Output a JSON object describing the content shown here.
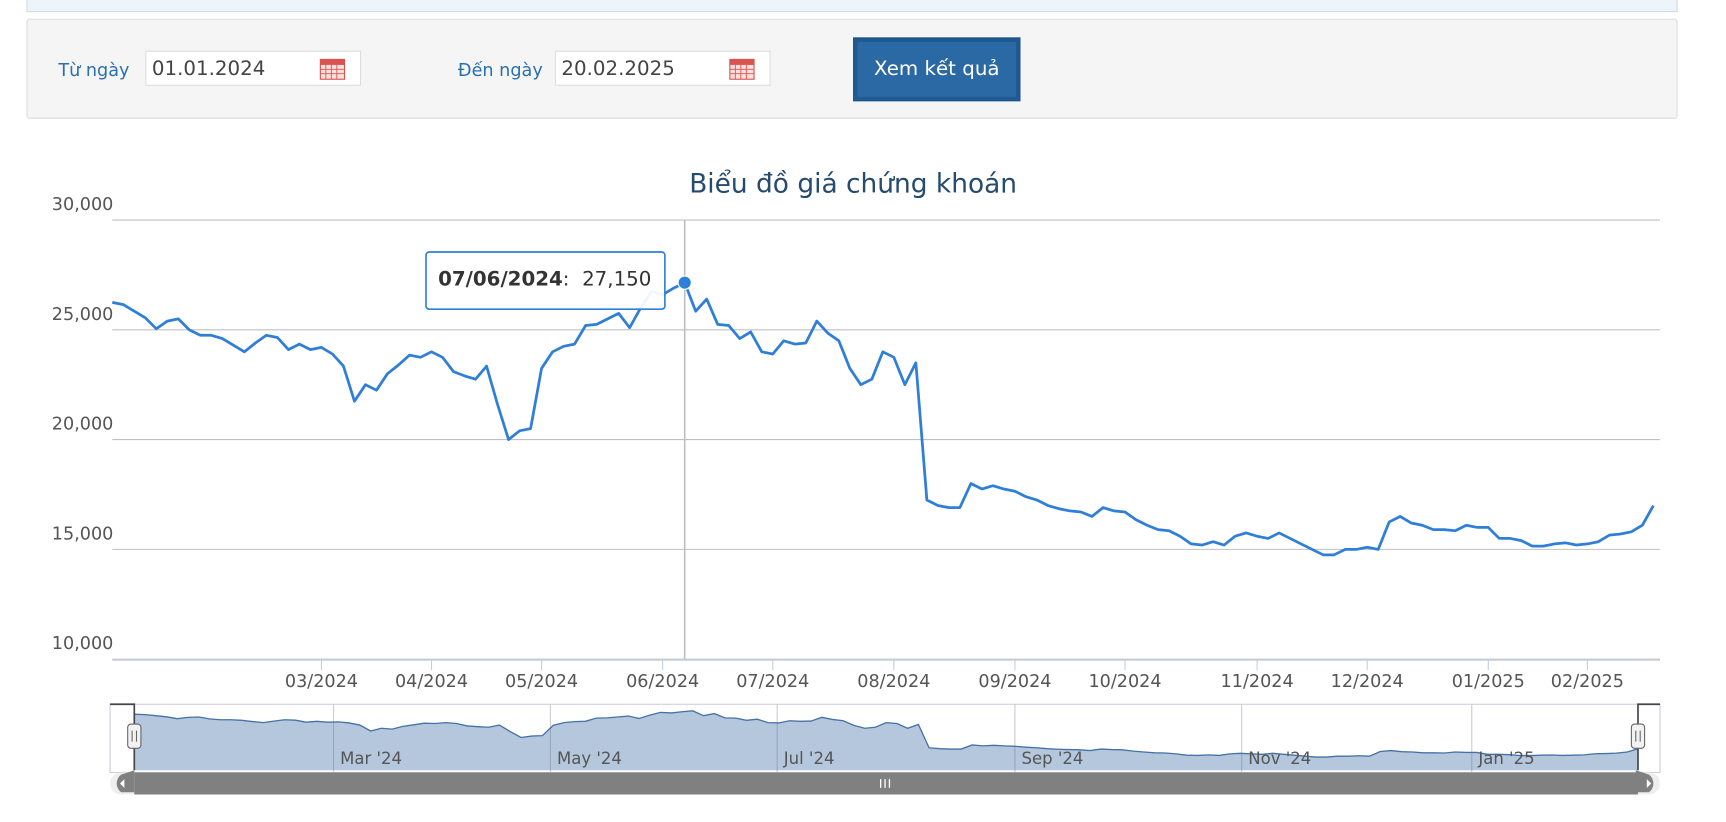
{
  "form": {
    "from_label": "Từ ngày",
    "from_value": "01.01.2024",
    "to_label": "Đến ngày",
    "to_value": "20.02.2025",
    "button": "Xem kết quả"
  },
  "chart_data": {
    "type": "line",
    "title": "Biểu đồ giá chứng khoán",
    "color": "#2f7ed8",
    "categories": [
      null,
      null,
      null,
      null,
      null,
      null,
      null,
      null,
      null,
      null,
      null,
      null,
      null,
      null,
      null,
      null,
      null,
      null,
      null,
      "03/2024",
      null,
      null,
      null,
      null,
      null,
      null,
      null,
      null,
      null,
      "04/2024",
      null,
      null,
      null,
      null,
      null,
      null,
      null,
      null,
      null,
      "05/2024",
      null,
      null,
      null,
      null,
      null,
      null,
      null,
      null,
      null,
      null,
      "06/2024",
      null,
      null,
      null,
      null,
      null,
      null,
      null,
      null,
      null,
      "07/2024",
      null,
      null,
      null,
      null,
      null,
      null,
      null,
      null,
      null,
      null,
      "08/2024",
      null,
      null,
      null,
      null,
      null,
      null,
      null,
      null,
      null,
      null,
      "09/2024",
      null,
      null,
      null,
      null,
      null,
      null,
      null,
      null,
      null,
      "10/2024",
      null,
      null,
      null,
      null,
      null,
      null,
      null,
      null,
      null,
      null,
      null,
      "11/2024",
      null,
      null,
      null,
      null,
      null,
      null,
      null,
      null,
      null,
      "12/2024",
      null,
      null,
      null,
      null,
      null,
      null,
      null,
      null,
      null,
      null,
      "01/2025",
      null,
      null,
      null,
      null,
      null,
      null,
      null,
      null,
      "02/2025",
      null,
      null,
      null,
      null,
      null,
      null
    ],
    "values": [
      26250,
      26150,
      25850,
      25550,
      25050,
      25400,
      25500,
      25000,
      24750,
      24750,
      24600,
      24300,
      24000,
      24400,
      24750,
      24650,
      24100,
      24350,
      24100,
      24200,
      23900,
      23350,
      21750,
      22500,
      22250,
      23000,
      23400,
      23850,
      23750,
      24000,
      23750,
      23100,
      22900,
      22750,
      23350,
      21600,
      20000,
      20400,
      20500,
      23250,
      24000,
      24250,
      24350,
      25200,
      25250,
      25500,
      25750,
      25100,
      26000,
      26750,
      26600,
      26900,
      27150,
      25850,
      26400,
      25250,
      25200,
      24600,
      24900,
      24000,
      23900,
      24500,
      24350,
      24400,
      25400,
      24850,
      24500,
      23250,
      22500,
      22750,
      24000,
      23750,
      22500,
      23500,
      17250,
      17000,
      16900,
      16900,
      18000,
      17750,
      17900,
      17750,
      17650,
      17400,
      17250,
      17000,
      16850,
      16750,
      16700,
      16500,
      16900,
      16750,
      16700,
      16350,
      16100,
      15900,
      15850,
      15600,
      15250,
      15200,
      15350,
      15200,
      15600,
      15750,
      15600,
      15500,
      15750,
      15500,
      15250,
      15000,
      14750,
      14750,
      15000,
      15000,
      15100,
      15000,
      16250,
      16500,
      16200,
      16100,
      15900,
      15900,
      15850,
      16100,
      16000,
      16000,
      15500,
      15500,
      15400,
      15150,
      15150,
      15250,
      15300,
      15200,
      15250,
      15350,
      15650,
      15700,
      15800,
      16100,
      17000
    ],
    "ylim": [
      10000,
      30000
    ],
    "yticks": [
      {
        "value": 10000,
        "label": "10,000"
      },
      {
        "value": 15000,
        "label": "15,000"
      },
      {
        "value": 20000,
        "label": "20,000"
      },
      {
        "value": 25000,
        "label": "25,000"
      },
      {
        "value": 30000,
        "label": "30,000"
      }
    ],
    "grid": true,
    "tooltip": {
      "x": "07/06/2024",
      "value": 27150,
      "value_label": "27,150"
    },
    "navigator_labels": [
      "Mar '24",
      "May '24",
      "Jul '24",
      "Sep '24",
      "Nov '24",
      "Jan '25"
    ]
  }
}
